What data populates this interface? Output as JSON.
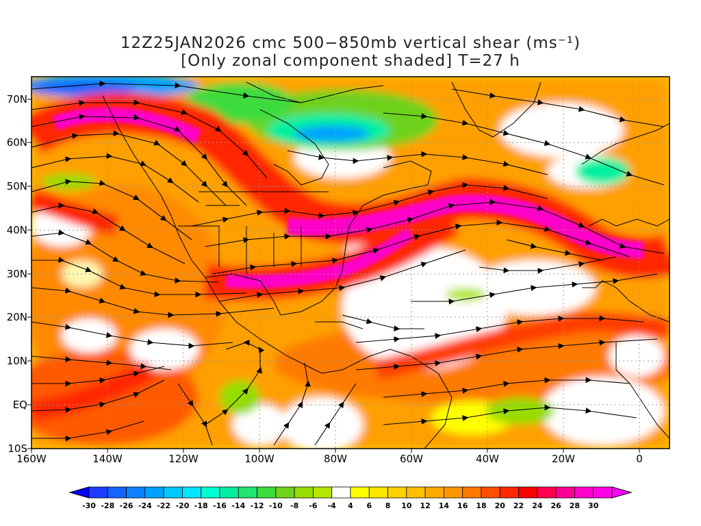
{
  "title": {
    "line1": "12Z25JAN2026 cmc 500−850mb vertical shear (ms⁻¹)",
    "line2": "[Only zonal component shaded] T=27 h"
  },
  "map": {
    "lat_labels": [
      "70N",
      "60N",
      "50N",
      "40N",
      "30N",
      "20N",
      "10N",
      "EQ",
      "10S"
    ],
    "lon_labels": [
      "160W",
      "140W",
      "120W",
      "100W",
      "80W",
      "60W",
      "40W",
      "20W",
      "0"
    ],
    "lon_range": [
      "160W",
      "10E"
    ],
    "lat_range": [
      "10S",
      "75N"
    ]
  },
  "colorbar": {
    "labels": [
      "-30",
      "-28",
      "-26",
      "-24",
      "-22",
      "-20",
      "-18",
      "-16",
      "-14",
      "-12",
      "-10",
      "-8",
      "-6",
      "-4",
      "4",
      "6",
      "8",
      "10",
      "12",
      "14",
      "16",
      "18",
      "20",
      "22",
      "24",
      "26",
      "28",
      "30"
    ],
    "colors": [
      "#1e3cff",
      "#1464ff",
      "#0a82ff",
      "#00a0ff",
      "#00c8ff",
      "#00e6ff",
      "#00ffd2",
      "#00f0a0",
      "#1ee66e",
      "#3cdc3c",
      "#6ed21e",
      "#96dc00",
      "#b4e600",
      "#ffffff",
      "#ffff00",
      "#ffe600",
      "#ffd200",
      "#ffbe00",
      "#ffaa00",
      "#ff9600",
      "#ff7800",
      "#ff5000",
      "#ff2800",
      "#ff0000",
      "#ff0050",
      "#ff0096",
      "#ff00c8",
      "#ff00e6"
    ],
    "left_arrow_color": "#0000ff",
    "right_arrow_color": "#ff00ff"
  }
}
